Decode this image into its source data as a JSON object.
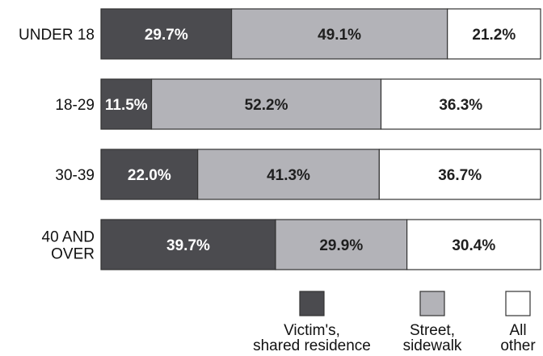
{
  "chart_data": {
    "type": "bar",
    "orientation": "horizontal",
    "stacked": true,
    "normalized_percent": true,
    "categories": [
      "UNDER 18",
      "18-29",
      "30-39",
      "40 AND OVER"
    ],
    "series": [
      {
        "name": "Victim's, shared residence",
        "values": [
          29.7,
          11.5,
          22.0,
          39.7
        ],
        "labels": [
          "29.7%",
          "11.5%",
          "22.0%",
          "39.7%"
        ],
        "color": "#4b4b4f",
        "label_color": "#ffffff"
      },
      {
        "name": "Street, sidewalk",
        "values": [
          49.1,
          52.2,
          41.3,
          29.9
        ],
        "labels": [
          "49.1%",
          "52.2%",
          "41.3%",
          "29.9%"
        ],
        "color": "#b3b3b8",
        "label_color": "#1f1f1f"
      },
      {
        "name": "All other",
        "values": [
          21.2,
          36.3,
          36.7,
          30.4
        ],
        "labels": [
          "21.2%",
          "36.3%",
          "36.7%",
          "30.4%"
        ],
        "color": "#ffffff",
        "label_color": "#1f1f1f"
      }
    ],
    "legend": [
      {
        "lines": [
          "Victim's,",
          "shared residence"
        ]
      },
      {
        "lines": [
          "Street,",
          "sidewalk"
        ]
      },
      {
        "lines": [
          "All",
          "other"
        ]
      }
    ],
    "title": "",
    "xlabel": "",
    "ylabel": "",
    "xlim": [
      0,
      100
    ],
    "grid": false,
    "legend_position": "bottom-right"
  }
}
